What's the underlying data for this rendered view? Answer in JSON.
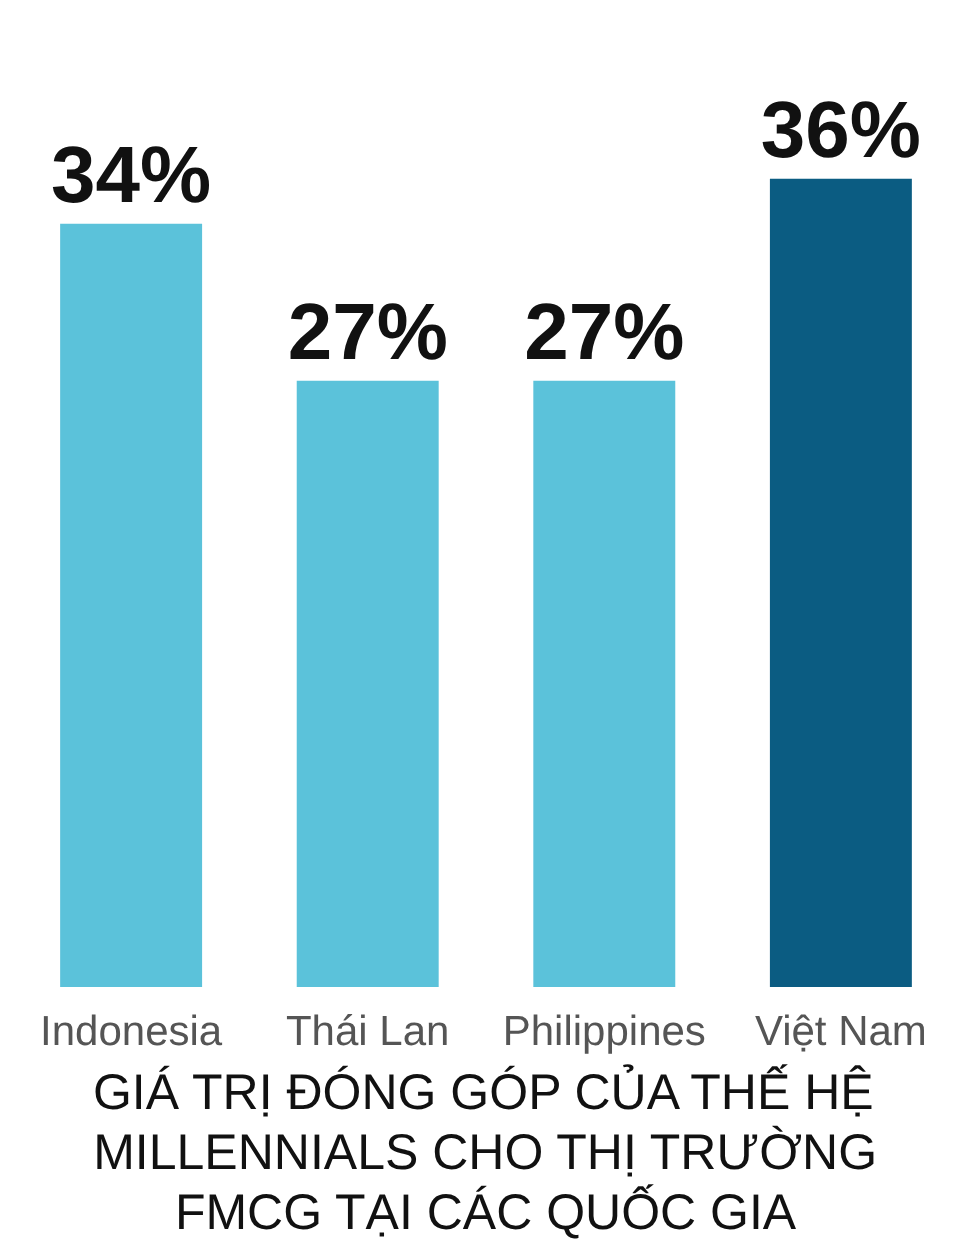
{
  "chart_data": {
    "type": "bar",
    "title": "GIÁ TRỊ ĐÓNG GÓP CỦA THẾ HỆ MILLENNIALS CHO THỊ TRƯỜNG FMCG TẠI CÁC QUỐC GIA",
    "categories": [
      "Indonesia",
      "Thái Lan",
      "Philippines",
      "Việt Nam"
    ],
    "values": [
      34,
      27,
      27,
      36
    ],
    "colors": [
      "#5bc2da",
      "#5bc2da",
      "#5bc2da",
      "#0b5c82"
    ],
    "value_labels": [
      "34%",
      "27%",
      "27%",
      "36%"
    ],
    "grid": false
  }
}
